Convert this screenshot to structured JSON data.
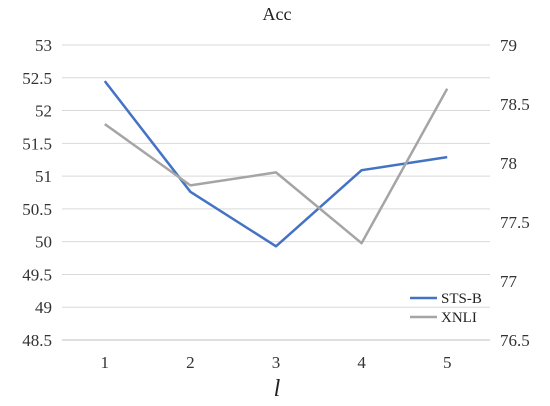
{
  "chart_data": {
    "type": "line",
    "title": "Acc",
    "xlabel": "l",
    "x": [
      1,
      2,
      3,
      4,
      5
    ],
    "categories": [
      "1",
      "2",
      "3",
      "4",
      "5"
    ],
    "y_left": {
      "ylim": [
        48.5,
        53
      ],
      "ticks": [
        "48.5",
        "49",
        "49.5",
        "50",
        "50.5",
        "51",
        "51.5",
        "52",
        "52.5",
        "53"
      ]
    },
    "y_right": {
      "ylim": [
        76.5,
        79
      ],
      "ticks": [
        "76.5",
        "77",
        "77.5",
        "78",
        "78.5",
        "79"
      ]
    },
    "grid": true,
    "legend_position": "bottom-right",
    "series": [
      {
        "name": "STS-B",
        "axis": "left",
        "color": "#4472c4",
        "values": [
          52.45,
          50.76,
          49.93,
          51.09,
          51.29
        ]
      },
      {
        "name": "XNLI",
        "axis": "right",
        "color": "#a5a5a5",
        "values": [
          78.33,
          77.81,
          77.92,
          77.32,
          78.63
        ]
      }
    ]
  }
}
